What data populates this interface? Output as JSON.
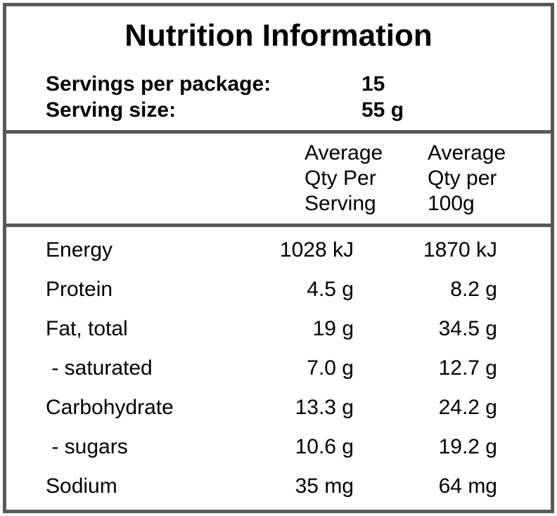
{
  "title": "Nutrition Information",
  "serving_info": {
    "rows": [
      {
        "label": "Servings per package:",
        "value": "15"
      },
      {
        "label": "Serving size:",
        "value": "55 g"
      }
    ]
  },
  "table": {
    "col_headers": [
      {
        "lines": [
          "Average",
          "Qty Per",
          "Serving"
        ]
      },
      {
        "lines": [
          "Average",
          "Qty per",
          "100g"
        ]
      }
    ],
    "rows": [
      {
        "label": "Energy",
        "per_serving": "1028 kJ",
        "per_100g": "1870 kJ"
      },
      {
        "label": "Protein",
        "per_serving": "4.5 g",
        "per_100g": "8.2 g"
      },
      {
        "label": "Fat, total",
        "per_serving": "19 g",
        "per_100g": "34.5 g"
      },
      {
        "label": " - saturated",
        "per_serving": "7.0 g",
        "per_100g": "12.7 g"
      },
      {
        "label": "Carbohydrate",
        "per_serving": "13.3 g",
        "per_100g": "24.2 g"
      },
      {
        "label": " - sugars",
        "per_serving": "10.6 g",
        "per_100g": "19.2 g"
      },
      {
        "label": "Sodium",
        "per_serving": "35 mg",
        "per_100g": "64 mg"
      }
    ]
  },
  "colors": {
    "border": "#58595b",
    "text": "#000000",
    "background": "#ffffff"
  }
}
